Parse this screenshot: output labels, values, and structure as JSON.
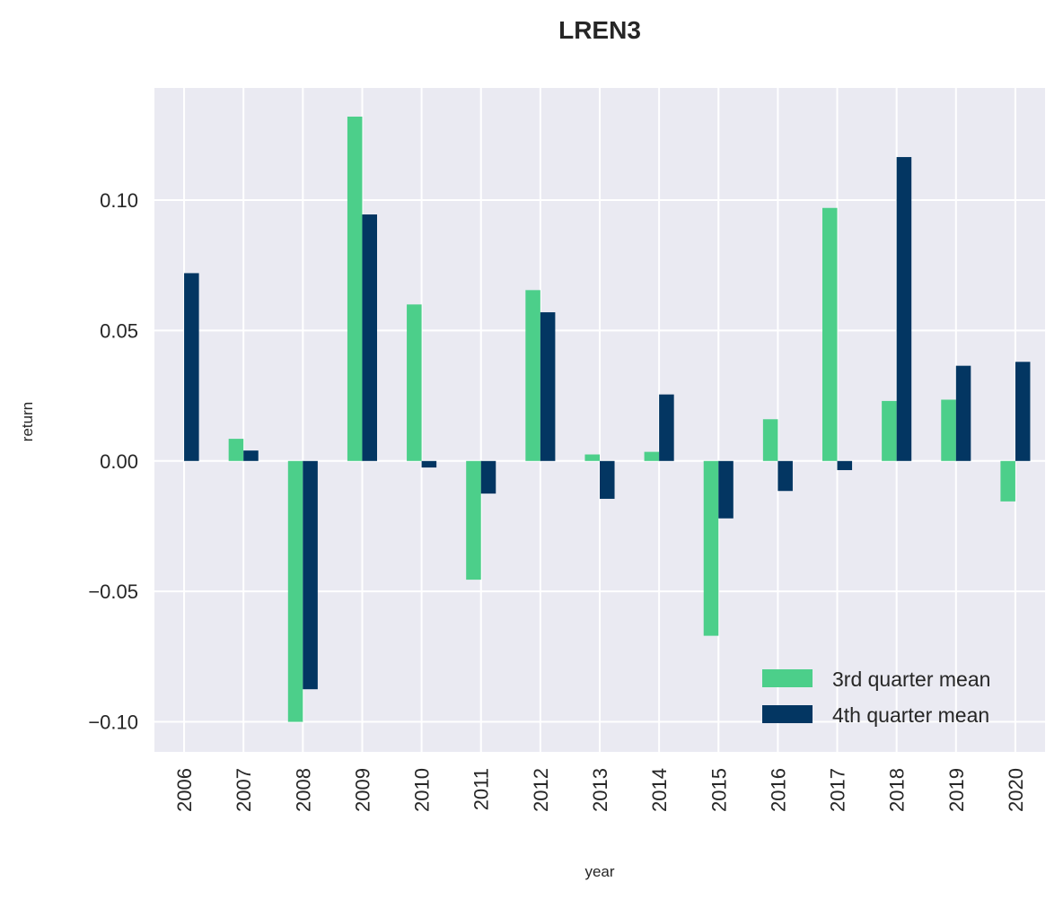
{
  "chart_data": {
    "type": "bar",
    "title": "LREN3",
    "xlabel": "year",
    "ylabel": "return",
    "categories": [
      "2006",
      "2007",
      "2008",
      "2009",
      "2010",
      "2011",
      "2012",
      "2013",
      "2014",
      "2015",
      "2016",
      "2017",
      "2018",
      "2019",
      "2020"
    ],
    "series": [
      {
        "name": "3rd quarter mean",
        "color": "#4ccf8a",
        "values": [
          0.0,
          0.0085,
          -0.1,
          0.132,
          0.06,
          -0.0455,
          0.0655,
          0.0025,
          0.0035,
          -0.067,
          0.016,
          0.097,
          0.023,
          0.0235,
          -0.0155
        ]
      },
      {
        "name": "4th quarter mean",
        "color": "#033662",
        "values": [
          0.072,
          0.004,
          -0.0875,
          0.0945,
          -0.0025,
          -0.0125,
          0.057,
          -0.0145,
          0.0255,
          -0.022,
          -0.0115,
          -0.0035,
          0.1165,
          0.0365,
          0.038
        ]
      }
    ],
    "yticks": [
      "0.10",
      "0.05",
      "0.00",
      "−0.05",
      "−0.10"
    ],
    "ytick_values": [
      0.1,
      0.05,
      0.0,
      -0.05,
      -0.1
    ],
    "ylim": [
      -0.1115,
      0.143
    ],
    "grid": true,
    "legend_position": "lower-right",
    "background": "#eaeaf2"
  }
}
